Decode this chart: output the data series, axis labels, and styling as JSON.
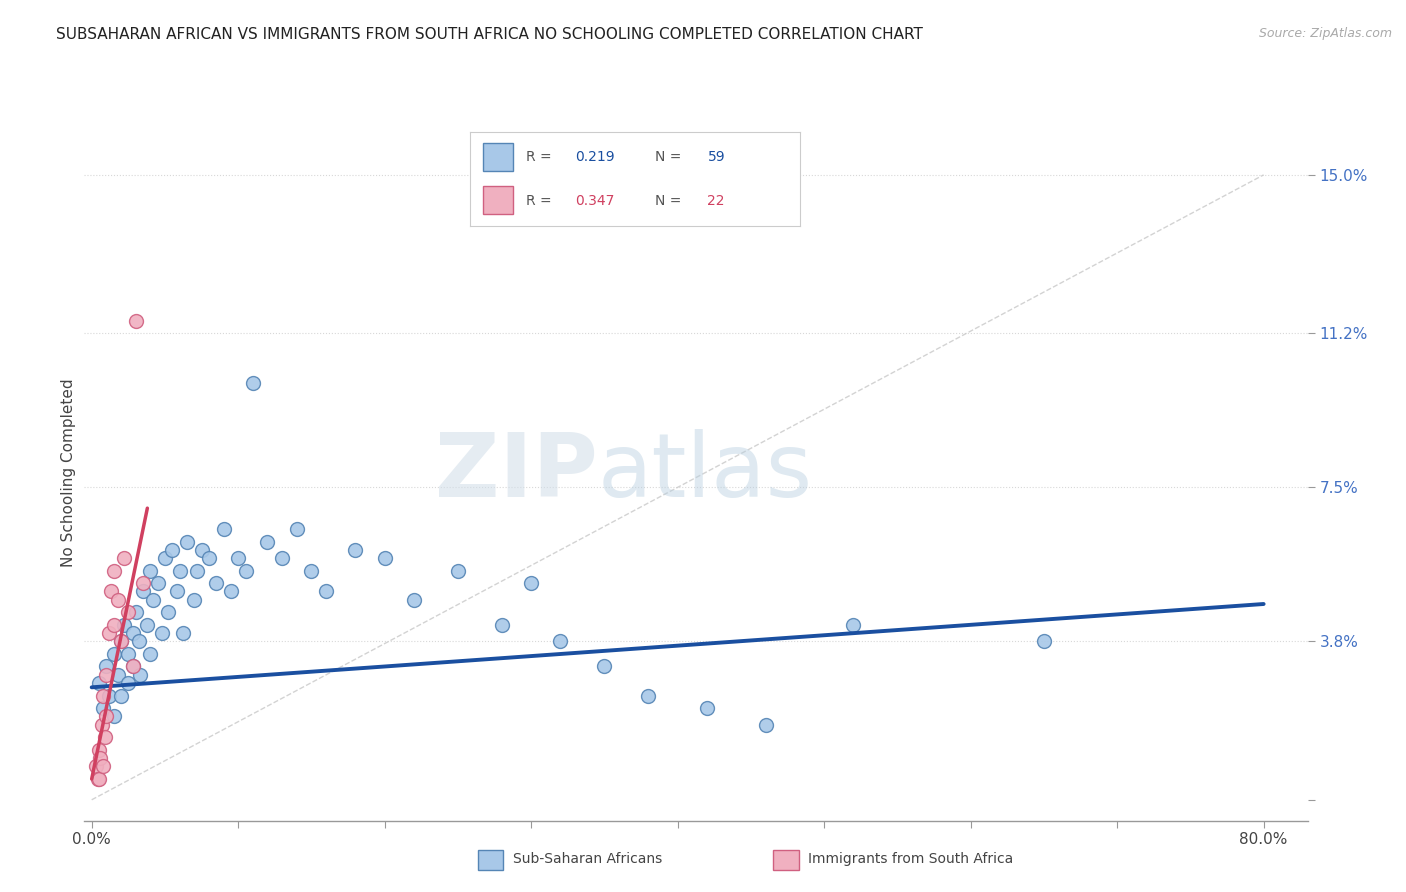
{
  "title": "SUBSAHARAN AFRICAN VS IMMIGRANTS FROM SOUTH AFRICA NO SCHOOLING COMPLETED CORRELATION CHART",
  "source": "Source: ZipAtlas.com",
  "ylabel": "No Schooling Completed",
  "yticks": [
    0.0,
    0.038,
    0.075,
    0.112,
    0.15
  ],
  "ytick_labels": [
    "",
    "3.8%",
    "7.5%",
    "11.2%",
    "15.0%"
  ],
  "xticks": [
    0.0,
    0.1,
    0.2,
    0.3,
    0.4,
    0.5,
    0.6,
    0.7,
    0.8
  ],
  "color_blue_fill": "#a8c8e8",
  "color_blue_edge": "#5585b5",
  "color_blue_line": "#1a4fa0",
  "color_pink_fill": "#f0b0c0",
  "color_pink_edge": "#d06080",
  "color_pink_line": "#d04060",
  "color_diagonal": "#c8c8c8",
  "color_grid": "#d8d8d8",
  "color_ytick_label": "#4472C4",
  "color_title": "#222222",
  "watermark_zip": "ZIP",
  "watermark_atlas": "atlas",
  "blue_scatter_x": [
    0.005,
    0.008,
    0.01,
    0.012,
    0.015,
    0.015,
    0.018,
    0.02,
    0.02,
    0.022,
    0.025,
    0.025,
    0.028,
    0.028,
    0.03,
    0.032,
    0.033,
    0.035,
    0.038,
    0.04,
    0.04,
    0.042,
    0.045,
    0.048,
    0.05,
    0.052,
    0.055,
    0.058,
    0.06,
    0.062,
    0.065,
    0.07,
    0.072,
    0.075,
    0.08,
    0.085,
    0.09,
    0.095,
    0.1,
    0.105,
    0.11,
    0.12,
    0.13,
    0.14,
    0.15,
    0.16,
    0.18,
    0.2,
    0.22,
    0.25,
    0.28,
    0.3,
    0.32,
    0.35,
    0.38,
    0.42,
    0.46,
    0.52,
    0.65
  ],
  "blue_scatter_y": [
    0.028,
    0.022,
    0.032,
    0.025,
    0.035,
    0.02,
    0.03,
    0.038,
    0.025,
    0.042,
    0.035,
    0.028,
    0.04,
    0.032,
    0.045,
    0.038,
    0.03,
    0.05,
    0.042,
    0.055,
    0.035,
    0.048,
    0.052,
    0.04,
    0.058,
    0.045,
    0.06,
    0.05,
    0.055,
    0.04,
    0.062,
    0.048,
    0.055,
    0.06,
    0.058,
    0.052,
    0.065,
    0.05,
    0.058,
    0.055,
    0.1,
    0.062,
    0.058,
    0.065,
    0.055,
    0.05,
    0.06,
    0.058,
    0.048,
    0.055,
    0.042,
    0.052,
    0.038,
    0.032,
    0.025,
    0.022,
    0.018,
    0.042,
    0.038
  ],
  "pink_scatter_x": [
    0.003,
    0.004,
    0.005,
    0.005,
    0.006,
    0.007,
    0.008,
    0.008,
    0.009,
    0.01,
    0.01,
    0.012,
    0.013,
    0.015,
    0.015,
    0.018,
    0.02,
    0.022,
    0.025,
    0.028,
    0.03,
    0.035
  ],
  "pink_scatter_y": [
    0.008,
    0.005,
    0.012,
    0.005,
    0.01,
    0.018,
    0.008,
    0.025,
    0.015,
    0.02,
    0.03,
    0.04,
    0.05,
    0.042,
    0.055,
    0.048,
    0.038,
    0.058,
    0.045,
    0.032,
    0.115,
    0.052
  ],
  "blue_line_x0": 0.0,
  "blue_line_y0": 0.027,
  "blue_line_x1": 0.8,
  "blue_line_y1": 0.047,
  "pink_line_x0": 0.0,
  "pink_line_y0": 0.005,
  "pink_line_x1": 0.038,
  "pink_line_y1": 0.07,
  "xlim_min": -0.005,
  "xlim_max": 0.83,
  "ylim_min": -0.005,
  "ylim_max": 0.162
}
